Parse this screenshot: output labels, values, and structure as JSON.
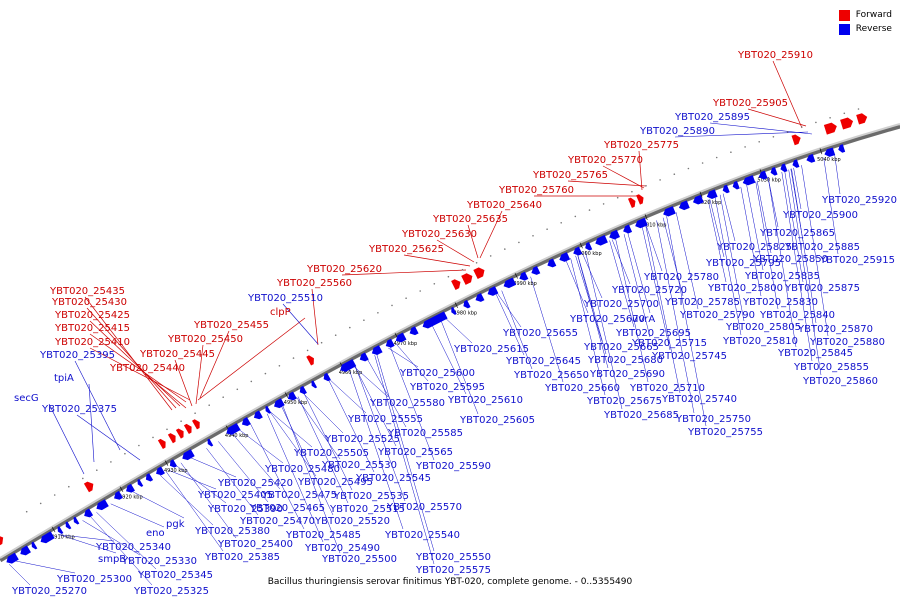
{
  "legend": {
    "forward_label": "Forward",
    "reverse_label": "Reverse",
    "forward_color": "#ee0000",
    "reverse_color": "#0000ee"
  },
  "caption": "Bacillus thuringiensis serovar finitimus YBT-020, complete genome. - 0..5355490",
  "ticks": [
    "4910 kbp",
    "4920 kbp",
    "4930 kbp",
    "4940 kbp",
    "4950 kbp",
    "4960 kbp",
    "4970 kbp",
    "4980 kbp",
    "4990 kbp",
    "5000 kbp",
    "5010 kbp",
    "5020 kbp",
    "5030 kbp",
    "5040 kbp"
  ],
  "forward_labels": [
    "YBT020_25910",
    "YBT020_25905",
    "YBT020_25775",
    "YBT020_25770",
    "YBT020_25765",
    "YBT020_25760",
    "YBT020_25640",
    "YBT020_25635",
    "YBT020_25630",
    "YBT020_25625",
    "YBT020_25620",
    "YBT020_25560",
    "YBT020_25435",
    "YBT020_25430",
    "YBT020_25425",
    "YBT020_25415",
    "YBT020_25410",
    "YBT020_25455",
    "clpP",
    "YBT020_25450",
    "YBT020_25445",
    "YBT020_25440"
  ],
  "reverse_labels_top": [
    "YBT020_25895",
    "YBT020_25890",
    "YBT020_25510",
    "YBT020_25395",
    "tpiA",
    "secG",
    "YBT020_25375"
  ],
  "reverse_labels_bottom": [
    "YBT020_25920",
    "YBT020_25900",
    "YBT020_25865",
    "YBT020_25825",
    "YBT020_25885",
    "YBT020_25850",
    "YBT020_25915",
    "YBT020_25795",
    "YBT020_25835",
    "YBT020_25780",
    "YBT020_25875",
    "YBT020_25720",
    "YBT020_25800",
    "YBT020_25785",
    "YBT020_25830",
    "YBT020_25700",
    "YBT020_25790",
    "YBT020_25840",
    "YBT020_25670",
    "uvrA",
    "YBT020_25655",
    "YBT020_25695",
    "YBT020_25805",
    "YBT020_25870",
    "YBT020_25665",
    "YBT020_25715",
    "YBT020_25810",
    "YBT020_25880",
    "YBT020_25615",
    "YBT020_25645",
    "YBT020_25680",
    "YBT020_25745",
    "YBT020_25845",
    "YBT020_25650",
    "YBT020_25690",
    "YBT020_25855",
    "YBT020_25600",
    "YBT020_25660",
    "YBT020_25710",
    "YBT020_25860",
    "YBT020_25595",
    "YBT020_25675",
    "YBT020_25740",
    "YBT020_25610",
    "YBT020_25580",
    "YBT020_25685",
    "YBT020_25555",
    "YBT020_25605",
    "YBT020_25750",
    "YBT020_25585",
    "YBT020_25755",
    "YBT020_25525",
    "YBT020_25505",
    "YBT020_25565",
    "YBT020_25530",
    "YBT020_25590",
    "YBT020_25480",
    "YBT020_25545",
    "YBT020_25420",
    "YBT020_25495",
    "YBT020_25405",
    "YBT020_25475",
    "YBT020_25535",
    "YBT020_25390",
    "YBT020_25465",
    "YBT020_25515",
    "YBT020_25570",
    "YBT020_25470",
    "YBT020_25520",
    "eno",
    "pgk",
    "YBT020_25380",
    "YBT020_25485",
    "YBT020_25540",
    "YBT020_25340",
    "YBT020_25400",
    "YBT020_25490",
    "smpB",
    "YBT020_25330",
    "YBT020_25385",
    "YBT020_25500",
    "YBT020_25550",
    "YBT020_25345",
    "YBT020_25575",
    "YBT020_25300",
    "YBT020_25270",
    "YBT020_25325"
  ]
}
